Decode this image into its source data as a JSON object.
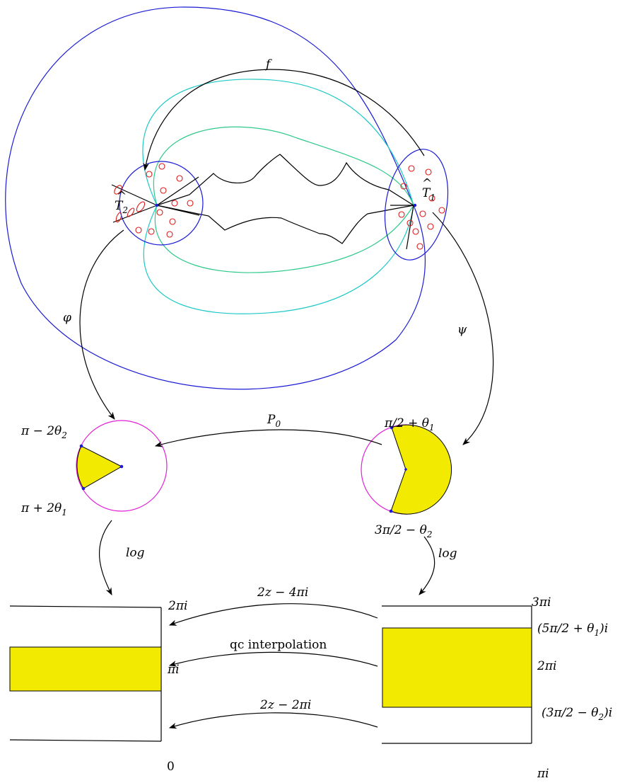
{
  "labels": {
    "f": "f",
    "T2": "T",
    "T2_sub": "2",
    "T1": "T",
    "T1_sub": "1",
    "hat": "^",
    "phi": "φ",
    "psi": "ψ",
    "P0": "P",
    "P0_sub": "0",
    "angle_left_top": "π − 2θ",
    "angle_left_top_sub": "2",
    "angle_left_bottom": "π + 2θ",
    "angle_left_bottom_sub": "1",
    "angle_right_top": "π/2 + θ",
    "angle_right_top_sub": "1",
    "angle_right_bottom": "3π/2 − θ",
    "angle_right_bottom_sub": "2",
    "log_left": "log",
    "log_right": "log",
    "map_top": "2z − 4πi",
    "map_mid": "qc interpolation",
    "map_bottom": "2z − 2πi",
    "left_2pi": "2πi",
    "left_pi": "πi",
    "left_0": "0",
    "right_3pi": "3πi",
    "right_upper": "(5π/2 + θ",
    "right_upper_sub": "1",
    "right_upper_end": ")i",
    "right_2pi": "2πi",
    "right_lower": "(3π/2 − θ",
    "right_lower_sub": "2",
    "right_lower_end": ")i",
    "right_pi": "πi"
  },
  "colors": {
    "blue": "#1a1ad6",
    "cyan": "#20c8c8",
    "green": "#2ec98a",
    "magenta": "#e020d8",
    "red": "#e01818",
    "yellow": "#f2ea00"
  }
}
